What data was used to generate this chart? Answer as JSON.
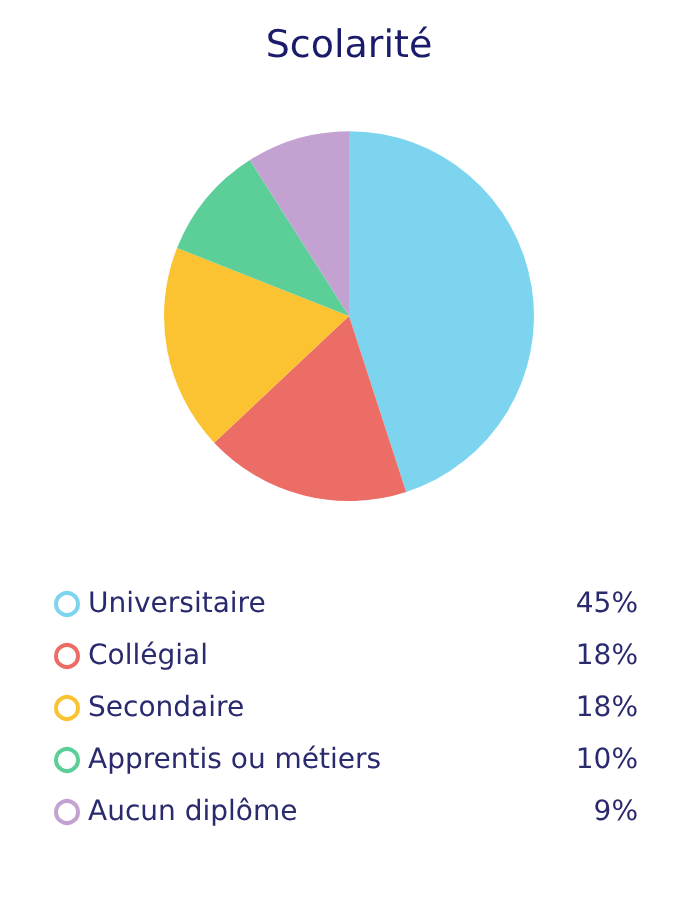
{
  "chart_data": {
    "type": "pie",
    "title": "Scolarité",
    "categories": [
      "Universitaire",
      "Collégial",
      "Secondaire",
      "Apprentis ou métiers",
      "Aucun diplôme"
    ],
    "values": [
      45,
      18,
      18,
      10,
      9
    ],
    "colors": [
      "#7dd4ef",
      "#ec6c66",
      "#fbc331",
      "#5ccf98",
      "#c3a2d1"
    ],
    "value_labels": [
      "45%",
      "18%",
      "18%",
      "10%",
      "9%"
    ],
    "legend": "bottom"
  }
}
